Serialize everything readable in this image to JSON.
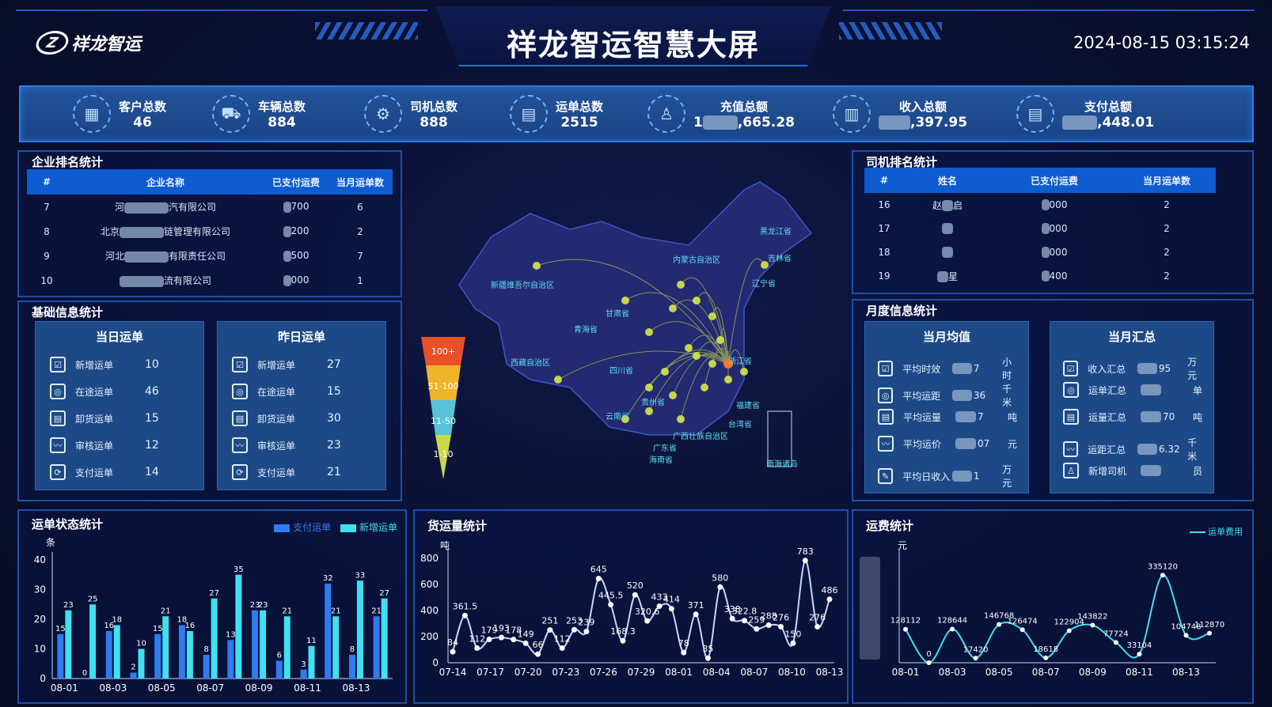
{
  "app": {
    "title": "祥龙智运智慧大屏",
    "logo_text": "祥龙智运",
    "datetime": "2024-08-15 03:15:24"
  },
  "kpis": [
    {
      "label": "客户总数",
      "value": "46",
      "icon": "building-icon"
    },
    {
      "label": "车辆总数",
      "value": "884",
      "icon": "truck-icon"
    },
    {
      "label": "司机总数",
      "value": "888",
      "icon": "driver-icon"
    },
    {
      "label": "运单总数",
      "value": "2515",
      "icon": "document-icon"
    },
    {
      "label": "充值总额",
      "value_prefix": "1",
      "value_suffix": ",665.28",
      "icon": "user-add-icon"
    },
    {
      "label": "收入总额",
      "value_prefix": "",
      "value_suffix": ",397.95",
      "icon": "chart-icon"
    },
    {
      "label": "支付总额",
      "value_prefix": "",
      "value_suffix": ",448.01",
      "icon": "receipt-icon"
    }
  ],
  "company_rank": {
    "title": "企业排名统计",
    "headers": [
      "#",
      "企业名称",
      "已支付运费",
      "当月运单数"
    ],
    "rows": [
      {
        "no": "7",
        "name_prefix": "河",
        "name_suffix": "汽有限公司",
        "paid": "700",
        "count": "6"
      },
      {
        "no": "8",
        "name_prefix": "北京",
        "name_suffix": "链管理有限公司",
        "paid": "200",
        "count": "2"
      },
      {
        "no": "9",
        "name_prefix": "河北",
        "name_suffix": "有限责任公司",
        "paid": "500",
        "count": "7"
      },
      {
        "no": "10",
        "name_prefix": "",
        "name_suffix": "流有限公司",
        "paid": "000",
        "count": "1"
      }
    ]
  },
  "driver_rank": {
    "title": "司机排名统计",
    "headers": [
      "#",
      "姓名",
      "已支付运费",
      "当月运单数"
    ],
    "rows": [
      {
        "no": "16",
        "name": "赵",
        "name2": "启",
        "paid": "000",
        "count": "2"
      },
      {
        "no": "17",
        "name": "",
        "name2": "",
        "paid": "000",
        "count": "2"
      },
      {
        "no": "18",
        "name": "",
        "name2": "",
        "paid": "000",
        "count": "2"
      },
      {
        "no": "19",
        "name": "",
        "name2": "星",
        "paid": "400",
        "count": "2"
      }
    ]
  },
  "basic_info": {
    "title": "基础信息统计",
    "today": {
      "title": "当日运单",
      "items": [
        {
          "label": "新增运单",
          "value": "10"
        },
        {
          "label": "在途运单",
          "value": "46"
        },
        {
          "label": "卸货运单",
          "value": "15"
        },
        {
          "label": "审核运单",
          "value": "12"
        },
        {
          "label": "支付运单",
          "value": "14"
        }
      ]
    },
    "yesterday": {
      "title": "昨日运单",
      "items": [
        {
          "label": "新增运单",
          "value": "27"
        },
        {
          "label": "在途运单",
          "value": "15"
        },
        {
          "label": "卸货运单",
          "value": "30"
        },
        {
          "label": "审核运单",
          "value": "23"
        },
        {
          "label": "支付运单",
          "value": "21"
        }
      ]
    }
  },
  "monthly_info": {
    "title": "月度信息统计",
    "avg": {
      "title": "当月均值",
      "items": [
        {
          "label": "平均时效",
          "value": "7",
          "unit": "小时"
        },
        {
          "label": "平均运距",
          "value": "36",
          "unit": "千米"
        },
        {
          "label": "平均运量",
          "value": "7",
          "unit": "吨"
        },
        {
          "label": "平均运价",
          "value": "07",
          "unit": "元"
        },
        {
          "label": "平均日收入",
          "value": "1",
          "unit": "万元"
        }
      ]
    },
    "sum": {
      "title": "当月汇总",
      "items": [
        {
          "label": "收入汇总",
          "value": "95",
          "unit": "万元"
        },
        {
          "label": "运单汇总",
          "value": "",
          "unit": "单"
        },
        {
          "label": "运量汇总",
          "value": "70",
          "unit": "吨"
        },
        {
          "label": "运距汇总",
          "value": "6.32",
          "unit": "千米"
        },
        {
          "label": "新增司机",
          "value": "",
          "unit": "员"
        }
      ]
    }
  },
  "map": {
    "provinces": [
      "黑龙江省",
      "内蒙古自治区",
      "新疆维吾尔自治区",
      "青海省",
      "甘肃省",
      "西藏自治区",
      "四川省",
      "云南省",
      "贵州省",
      "广西壮族自治区",
      "广东省",
      "福建省",
      "浙江省",
      "辽宁省",
      "吉林省",
      "海南省",
      "台湾省",
      "南海诸岛"
    ],
    "legend": [
      "100+",
      "51-100",
      "11-50",
      "1-10"
    ],
    "legend_colors": [
      "#e8502a",
      "#f0b429",
      "#58c2d8",
      "#c9d94a"
    ]
  },
  "charts": {
    "status": {
      "title": "运单状态统计",
      "unit": "条",
      "series": [
        {
          "name": "支付运单",
          "color": "#2f7bf0"
        },
        {
          "name": "新增运单",
          "color": "#3fe0f0"
        }
      ],
      "chart_data": {
        "type": "bar",
        "categories": [
          "08-01",
          "08-02",
          "08-03",
          "08-04",
          "08-05",
          "08-06",
          "08-07",
          "08-08",
          "08-09",
          "08-10",
          "08-11",
          "08-12",
          "08-13",
          "08-14"
        ],
        "tick_labels": [
          "08-01",
          "08-03",
          "08-05",
          "08-07",
          "08-09",
          "08-11",
          "08-13"
        ],
        "series": [
          {
            "name": "支付运单",
            "values": [
              15,
              0,
              16,
              2,
              15,
              18,
              8,
              13,
              23,
              6,
              3,
              32,
              8,
              21
            ]
          },
          {
            "name": "新增运单",
            "values": [
              23,
              25,
              18,
              10,
              21,
              16,
              27,
              35,
              23,
              21,
              11,
              21,
              33,
              27
            ]
          }
        ],
        "ylim": [
          0,
          40
        ],
        "yticks": [
          0,
          10,
          20,
          30,
          40
        ],
        "ylabel": "条"
      }
    },
    "volume": {
      "title": "货运量统计",
      "unit": "吨",
      "chart_data": {
        "type": "line",
        "x_tick_labels": [
          "07-14",
          "07-17",
          "07-20",
          "07-23",
          "07-26",
          "07-29",
          "08-01",
          "08-04",
          "08-07",
          "08-10",
          "08-13"
        ],
        "values": [
          84,
          361.5,
          112,
          179,
          193,
          178,
          149,
          66,
          251,
          112,
          253,
          239,
          645,
          445.5,
          168.3,
          520,
          320.6,
          433,
          414,
          78,
          371,
          35,
          580,
          338,
          322.8,
          259,
          288,
          276,
          150,
          783,
          276,
          486
        ],
        "ylim": [
          0,
          800
        ],
        "yticks": [
          0,
          200,
          400,
          600,
          800
        ],
        "ylabel": "吨"
      }
    },
    "fee": {
      "title": "运费统计",
      "unit": "元",
      "legend": "运单费用",
      "chart_data": {
        "type": "line",
        "categories": [
          "08-01",
          "08-02",
          "08-03",
          "08-04",
          "08-05",
          "08-06",
          "08-07",
          "08-08",
          "08-09",
          "08-10",
          "08-11",
          "08-12",
          "08-13",
          "08-14"
        ],
        "x_tick_labels": [
          "08-01",
          "08-03",
          "08-05",
          "08-07",
          "08-09",
          "08-11",
          "08-13"
        ],
        "values": [
          128112,
          0,
          128644,
          17420,
          146768,
          126474,
          18618,
          122904,
          143822,
          77724,
          33104,
          335120,
          104748,
          112870
        ],
        "ylim": [
          0,
          400000
        ],
        "ylabel": "元"
      }
    }
  }
}
